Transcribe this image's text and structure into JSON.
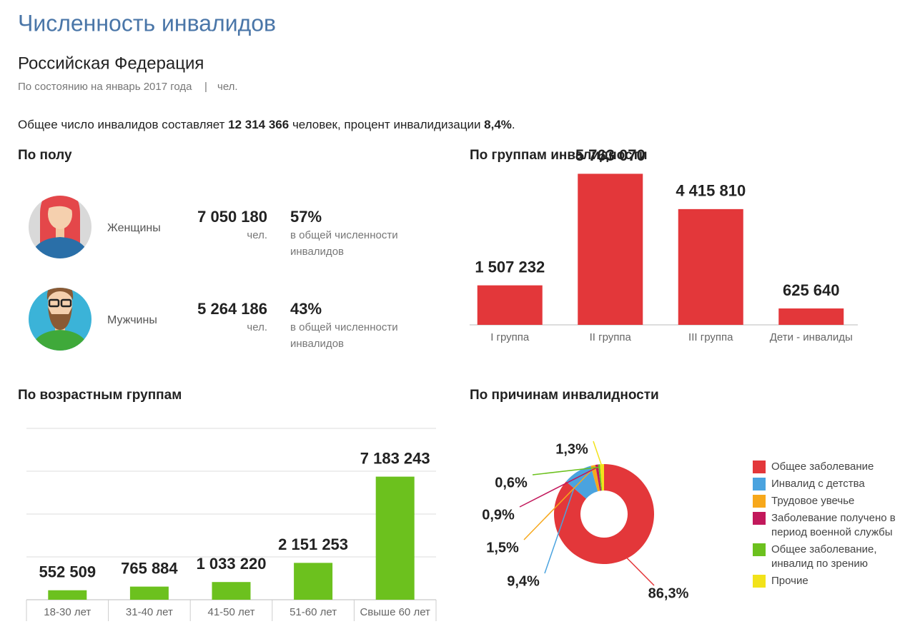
{
  "header": {
    "title": "Численность инвалидов",
    "region": "Российская Федерация",
    "date": "По состоянию на январь 2017 года",
    "separator": "|",
    "unit": "чел."
  },
  "summary": {
    "before": "Общее число инвалидов составляет ",
    "total": "12 314 366",
    "middle": " человек, процент инвалидизации ",
    "rate": "8,4%",
    "after": "."
  },
  "gender": {
    "title": "По полу",
    "items": [
      {
        "label": "Женщины",
        "count": "7 050 180",
        "unit": "чел.",
        "share": "57%",
        "share_note": [
          "в общей численности",
          "инвалидов"
        ]
      },
      {
        "label": "Мужчины",
        "count": "5 264 186",
        "unit": "чел.",
        "share": "43%",
        "share_note": [
          "в общей численности",
          "инвалидов"
        ]
      }
    ]
  },
  "chart_data": [
    {
      "type": "bar",
      "title": "По группам инвалидности",
      "categories": [
        "I группа",
        "II группа",
        "III группа",
        "Дети - инвалиды"
      ],
      "values": [
        1507232,
        5763070,
        4415810,
        625640
      ],
      "value_labels": [
        "1 507 232",
        "5 763 070",
        "4 415 810",
        "625 640"
      ],
      "color": "#e3373a",
      "ylim": [
        0,
        7000000
      ]
    },
    {
      "type": "bar",
      "title": "По возрастным группам",
      "categories": [
        "18-30 лет",
        "31-40 лет",
        "41-50 лет",
        "51-60 лет",
        "Свыше 60 лет"
      ],
      "values": [
        552509,
        765884,
        1033220,
        2151253,
        7183243
      ],
      "value_labels": [
        "552 509",
        "765 884",
        "1 033 220",
        "2 151 253",
        "7 183 243"
      ],
      "color": "#6cc11e",
      "ylim": [
        0,
        10000000
      ],
      "yticks": [
        0,
        2500000,
        5000000,
        7500000,
        10000000
      ],
      "grid": true
    },
    {
      "type": "pie",
      "title": "По причинам инвалидности",
      "categories": [
        "Общее заболевание",
        "Инвалид с детства",
        "Трудовое увечье",
        "Заболевание получено в период военной службы",
        "Общее заболевание, инвалид по зрению",
        "Прочие"
      ],
      "values": [
        86.3,
        9.4,
        1.5,
        0.9,
        0.6,
        1.3
      ],
      "value_labels": [
        "86,3%",
        "9,4%",
        "1,5%",
        "0,9%",
        "0,6%",
        "1,3%"
      ],
      "colors": [
        "#e3373a",
        "#4aa3df",
        "#f7a81b",
        "#c2185b",
        "#6cc11e",
        "#f2e21a"
      ]
    }
  ]
}
